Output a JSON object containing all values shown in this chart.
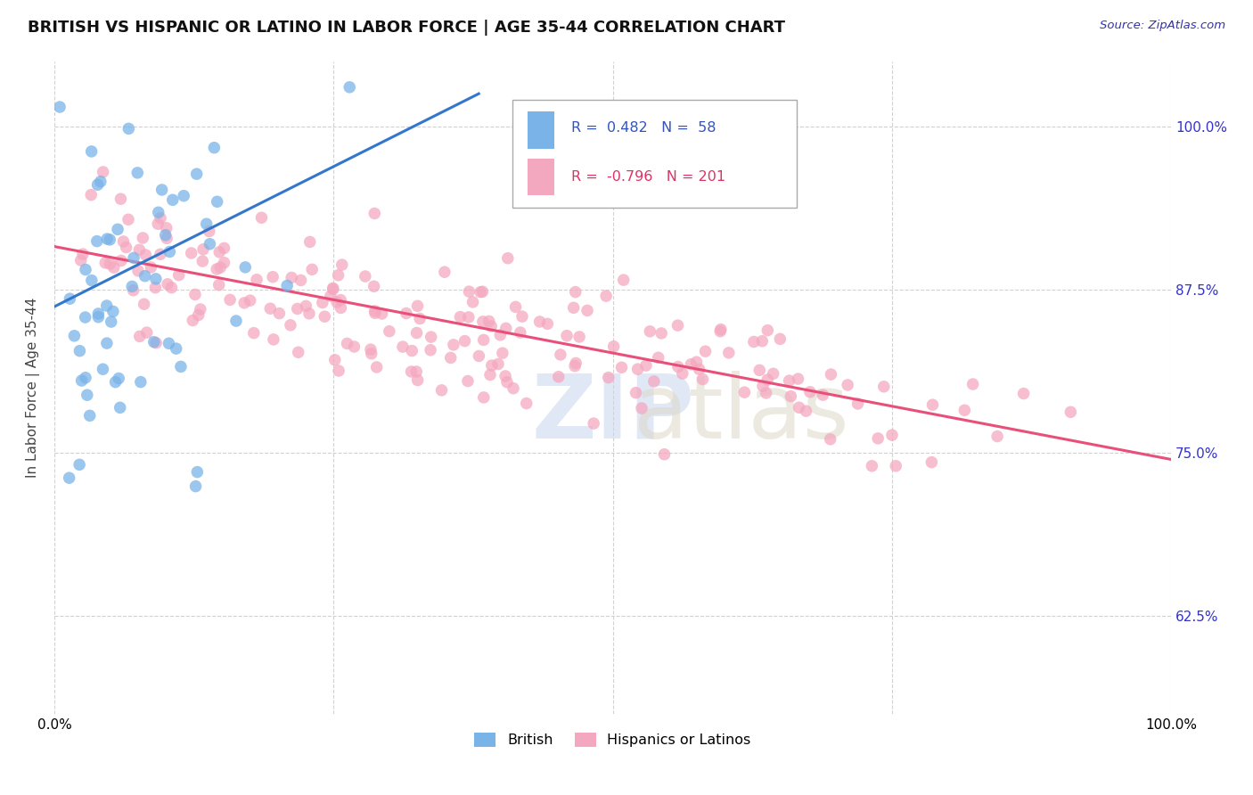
{
  "title": "BRITISH VS HISPANIC OR LATINO IN LABOR FORCE | AGE 35-44 CORRELATION CHART",
  "source_text": "Source: ZipAtlas.com",
  "ylabel": "In Labor Force | Age 35-44",
  "r_british": 0.482,
  "n_british": 58,
  "r_hispanic": -0.796,
  "n_hispanic": 201,
  "blue_color": "#7ab3e8",
  "pink_color": "#f4a8c0",
  "blue_line_color": "#3377cc",
  "pink_line_color": "#e8507a",
  "legend_label_british": "British",
  "legend_label_hispanic": "Hispanics or Latinos",
  "xlim": [
    0.0,
    1.0
  ],
  "ylim": [
    0.55,
    1.05
  ],
  "yticks": [
    0.625,
    0.75,
    0.875,
    1.0
  ],
  "ytick_labels": [
    "62.5%",
    "75.0%",
    "87.5%",
    "100.0%"
  ],
  "grid_color": "#cccccc",
  "background_color": "#ffffff",
  "title_fontsize": 13,
  "axis_label_fontsize": 11,
  "tick_fontsize": 11,
  "right_tick_color": "#3333cc",
  "blue_trend_x0": 0.0,
  "blue_trend_y0": 0.862,
  "blue_trend_x1": 0.38,
  "blue_trend_y1": 1.025,
  "pink_trend_x0": 0.0,
  "pink_trend_y0": 0.908,
  "pink_trend_x1": 1.0,
  "pink_trend_y1": 0.745
}
